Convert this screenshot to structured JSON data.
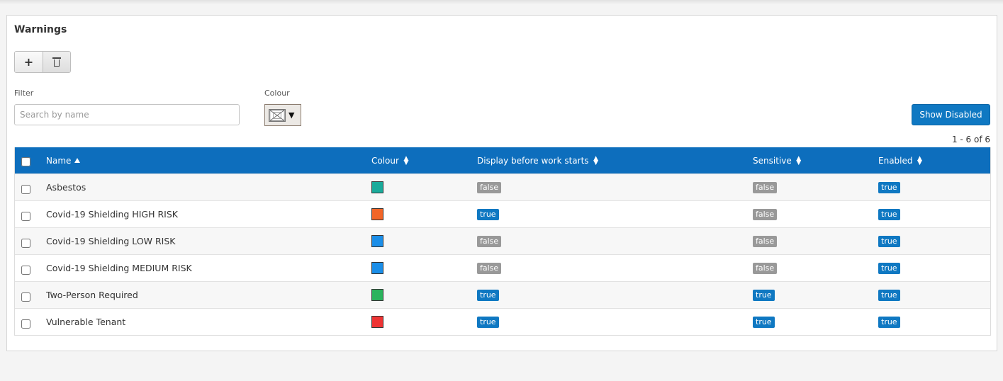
{
  "page": {
    "title": "Warnings",
    "toolbar": {
      "add_icon": "plus-icon",
      "delete_icon": "trash-icon"
    },
    "filter": {
      "label": "Filter",
      "placeholder": "Search by name",
      "value": ""
    },
    "colour_filter": {
      "label": "Colour",
      "icon": "no-colour-icon",
      "caret": "▼"
    },
    "show_disabled_label": "Show Disabled",
    "count_text": "1 - 6 of 6"
  },
  "table": {
    "columns": [
      {
        "label": "Name",
        "sort": "ascending"
      },
      {
        "label": "Colour",
        "sort": "none"
      },
      {
        "label": "Display before work starts",
        "sort": "none"
      },
      {
        "label": "Sensitive",
        "sort": "none"
      },
      {
        "label": "Enabled",
        "sort": "none"
      }
    ],
    "rows": [
      {
        "name": "Asbestos",
        "colour": "#1aab9b",
        "display_before": "false",
        "sensitive": "false",
        "enabled": "true"
      },
      {
        "name": "Covid-19 Shielding HIGH RISK",
        "colour": "#f26527",
        "display_before": "true",
        "sensitive": "false",
        "enabled": "true"
      },
      {
        "name": "Covid-19 Shielding LOW RISK",
        "colour": "#1b8ee8",
        "display_before": "false",
        "sensitive": "false",
        "enabled": "true"
      },
      {
        "name": "Covid-19 Shielding MEDIUM RISK",
        "colour": "#1b8ee8",
        "display_before": "false",
        "sensitive": "false",
        "enabled": "true"
      },
      {
        "name": "Two-Person Required",
        "colour": "#2bb35d",
        "display_before": "true",
        "sensitive": "true",
        "enabled": "true"
      },
      {
        "name": "Vulnerable Tenant",
        "colour": "#ee3434",
        "display_before": "true",
        "sensitive": "true",
        "enabled": "true"
      }
    ]
  },
  "colors": {
    "header_bg": "#0d6ebd",
    "badge_true": "#0f78c2",
    "badge_false": "#999999"
  }
}
